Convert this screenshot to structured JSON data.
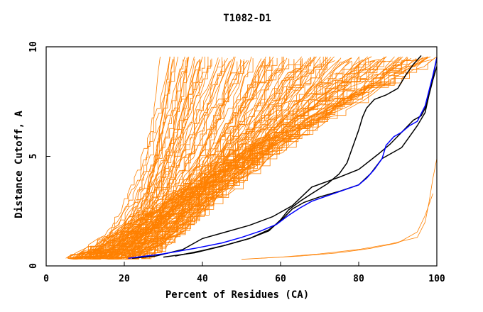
{
  "chart_data": {
    "type": "line",
    "title": "T1082-D1",
    "xlabel": "Percent of Residues (CA)",
    "ylabel": "Distance Cutoff, A",
    "xlim": [
      0,
      100
    ],
    "ylim": [
      0,
      10
    ],
    "xticks": [
      0,
      20,
      40,
      60,
      80,
      100
    ],
    "yticks": [
      0,
      5,
      10
    ],
    "grid": false,
    "legend": "none",
    "series_colors": {
      "others": "#ff8000",
      "highlight_black": "#000000",
      "highlight_blue": "#0000ff"
    },
    "highlight_series": [
      {
        "color": "#000000",
        "points": [
          [
            22,
            0.35
          ],
          [
            28,
            0.45
          ],
          [
            35,
            0.75
          ],
          [
            40,
            1.25
          ],
          [
            46,
            1.55
          ],
          [
            52,
            1.85
          ],
          [
            58,
            2.25
          ],
          [
            63,
            2.75
          ],
          [
            68,
            3.6
          ],
          [
            75,
            4.05
          ],
          [
            80,
            4.4
          ],
          [
            85,
            5.1
          ],
          [
            88,
            5.55
          ],
          [
            91,
            6.1
          ],
          [
            94,
            6.65
          ],
          [
            96,
            6.85
          ],
          [
            97,
            7.2
          ],
          [
            98,
            7.9
          ],
          [
            99,
            8.6
          ],
          [
            100,
            9.5
          ]
        ]
      },
      {
        "color": "#000000",
        "points": [
          [
            33,
            0.45
          ],
          [
            40,
            0.7
          ],
          [
            46,
            0.95
          ],
          [
            52,
            1.25
          ],
          [
            57,
            1.6
          ],
          [
            60,
            2.1
          ],
          [
            62,
            2.55
          ],
          [
            65,
            2.95
          ],
          [
            68,
            3.3
          ],
          [
            72,
            3.75
          ],
          [
            75,
            4.2
          ],
          [
            77,
            4.7
          ],
          [
            79,
            5.7
          ],
          [
            80,
            6.2
          ],
          [
            81,
            6.8
          ],
          [
            82,
            7.2
          ],
          [
            84,
            7.6
          ],
          [
            87,
            7.8
          ],
          [
            90,
            8.1
          ],
          [
            92,
            8.7
          ],
          [
            94,
            9.2
          ],
          [
            96,
            9.6
          ]
        ]
      },
      {
        "color": "#000000",
        "points": [
          [
            30,
            0.4
          ],
          [
            38,
            0.6
          ],
          [
            45,
            0.9
          ],
          [
            52,
            1.25
          ],
          [
            57,
            1.65
          ],
          [
            60,
            2.05
          ],
          [
            63,
            2.6
          ],
          [
            66,
            2.9
          ],
          [
            70,
            3.15
          ],
          [
            75,
            3.4
          ],
          [
            80,
            3.7
          ],
          [
            83,
            4.2
          ],
          [
            86,
            4.9
          ],
          [
            88,
            5.1
          ],
          [
            91,
            5.4
          ],
          [
            93,
            5.9
          ],
          [
            95,
            6.4
          ],
          [
            97,
            7.0
          ],
          [
            98,
            7.8
          ],
          [
            99,
            8.5
          ],
          [
            100,
            9.1
          ]
        ]
      },
      {
        "color": "#0000ff",
        "points": [
          [
            21,
            0.35
          ],
          [
            30,
            0.55
          ],
          [
            38,
            0.8
          ],
          [
            45,
            1.05
          ],
          [
            50,
            1.3
          ],
          [
            55,
            1.6
          ],
          [
            59,
            1.9
          ],
          [
            62,
            2.3
          ],
          [
            65,
            2.65
          ],
          [
            68,
            2.95
          ],
          [
            72,
            3.2
          ],
          [
            76,
            3.45
          ],
          [
            80,
            3.7
          ],
          [
            82,
            4.0
          ],
          [
            84,
            4.4
          ],
          [
            86,
            4.9
          ],
          [
            87,
            5.5
          ],
          [
            89,
            5.9
          ],
          [
            91,
            6.1
          ],
          [
            93,
            6.4
          ],
          [
            95,
            6.6
          ],
          [
            97,
            7.3
          ],
          [
            98,
            8.0
          ],
          [
            99,
            8.7
          ],
          [
            100,
            9.5
          ]
        ]
      }
    ],
    "others_count": 140
  }
}
